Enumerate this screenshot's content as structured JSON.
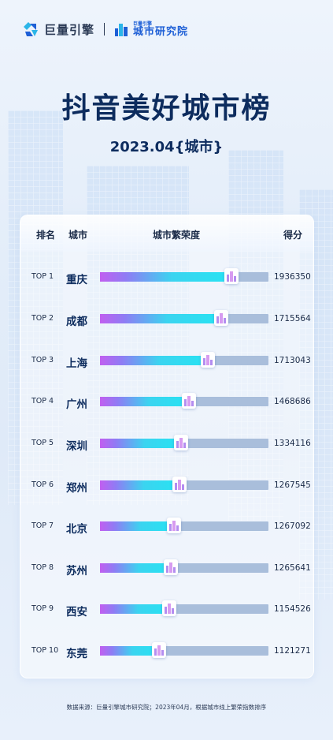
{
  "brand": {
    "logo1_text": "巨量引擎",
    "logo2_small": "巨量引擎",
    "logo2_text": "城市研究院"
  },
  "title": "抖音美好城市榜",
  "subtitle": "2023.04{城市}",
  "table": {
    "headers": {
      "rank": "排名",
      "city": "城市",
      "prosperity": "城市繁荣度",
      "score": "得分"
    },
    "rows": [
      {
        "rank": "TOP 1",
        "city": "重庆",
        "score": "1936350",
        "level": 0.78
      },
      {
        "rank": "TOP 2",
        "city": "成都",
        "score": "1715564",
        "level": 0.72
      },
      {
        "rank": "TOP 3",
        "city": "上海",
        "score": "1713043",
        "level": 0.64
      },
      {
        "rank": "TOP 4",
        "city": "广州",
        "score": "1468686",
        "level": 0.53
      },
      {
        "rank": "TOP 5",
        "city": "深圳",
        "score": "1334116",
        "level": 0.48
      },
      {
        "rank": "TOP 6",
        "city": "郑州",
        "score": "1267545",
        "level": 0.47
      },
      {
        "rank": "TOP 7",
        "city": "北京",
        "score": "1267092",
        "level": 0.44
      },
      {
        "rank": "TOP 8",
        "city": "苏州",
        "score": "1265641",
        "level": 0.42
      },
      {
        "rank": "TOP 9",
        "city": "西安",
        "score": "1154526",
        "level": 0.41
      },
      {
        "rank": "TOP 10",
        "city": "东莞",
        "score": "1121271",
        "level": 0.35
      }
    ]
  },
  "footer": "数据来源：巨量引擎城市研究院；2023年04月，根据城市线上繁荣指数排序",
  "colors": {
    "title": "#0d2c5e",
    "bar_start": "#c15ff0",
    "bar_end": "#27e3f2",
    "track": "#a9bedb",
    "brand_blue": "#1e5fd6"
  }
}
